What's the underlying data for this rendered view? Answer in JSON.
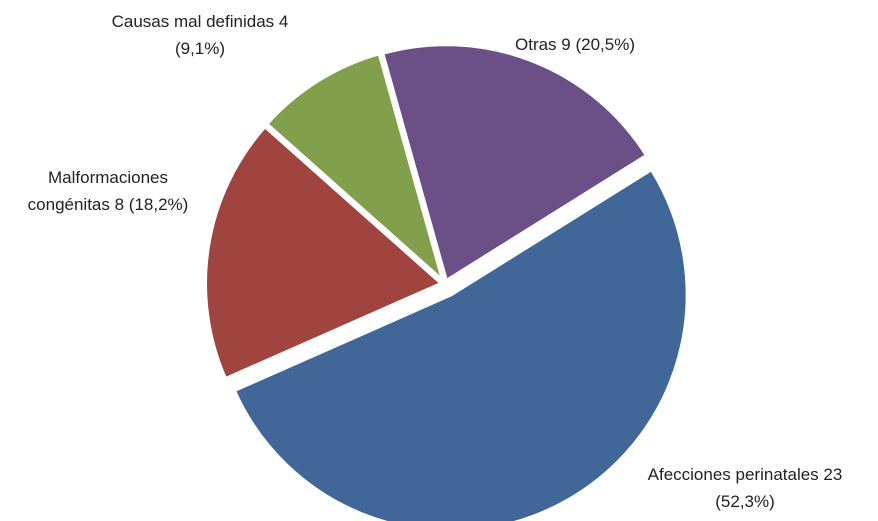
{
  "chart_data": {
    "type": "pie",
    "categories": [
      "Afecciones perinatales",
      "Malformaciones congénitas",
      "Causas mal definidas",
      "Otras"
    ],
    "values": [
      23,
      8,
      4,
      9
    ],
    "value_labels": [
      "23 (52,3%)",
      "8 (18,2%)",
      "4 (9,1%)",
      "9 (20,5%)"
    ],
    "colors": [
      "#416799",
      "#a04440",
      "#829f4b",
      "#6b5087"
    ]
  }
}
